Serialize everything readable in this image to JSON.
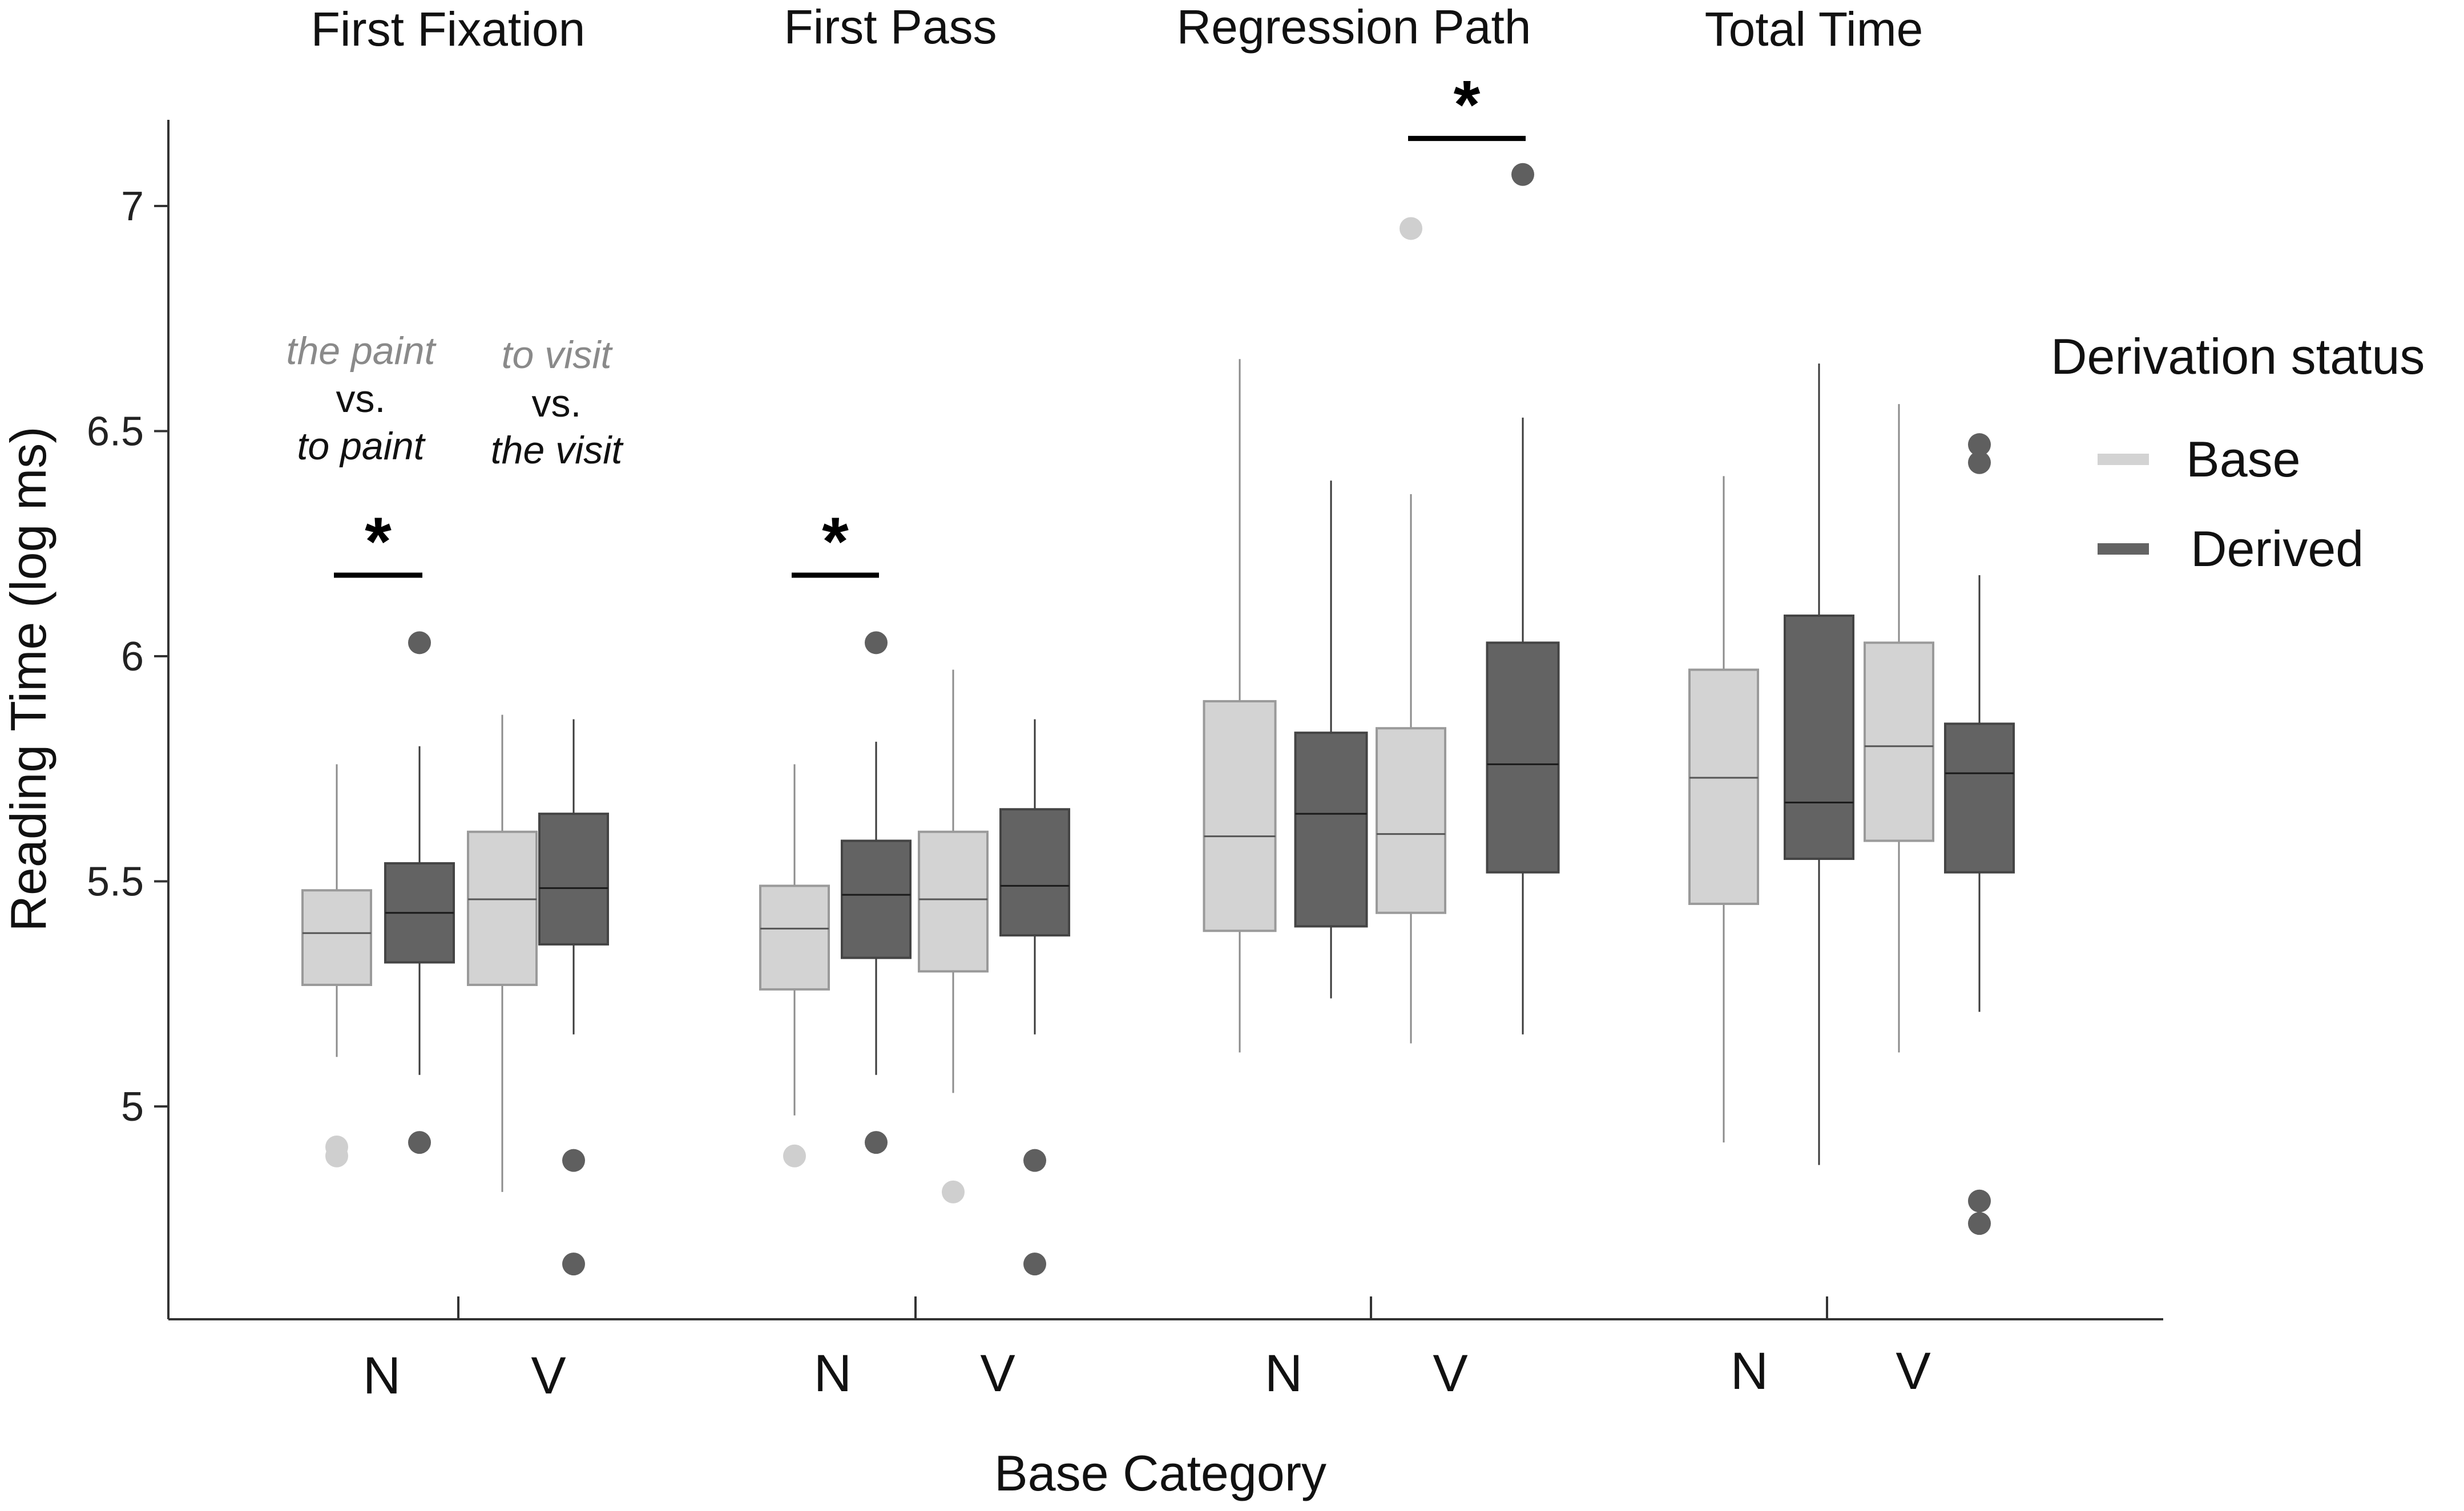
{
  "chart_data": {
    "type": "boxplot",
    "panels": [
      "First Fixation",
      "First Pass",
      "Regression Path",
      "Total Time"
    ],
    "categories": [
      "N",
      "V"
    ],
    "xlabel": "Base Category",
    "ylabel": "Reading Time (log ms)",
    "ylim": [
      4.55,
      7.2
    ],
    "yticks": [
      {
        "value": 5,
        "label": "5"
      },
      {
        "value": 5.5,
        "label": "5.5"
      },
      {
        "value": 6,
        "label": "6"
      },
      {
        "value": 6.5,
        "label": "6.5"
      },
      {
        "value": 7,
        "label": "7"
      }
    ],
    "legend": {
      "title": "Derivation status",
      "entries": [
        {
          "name": "Base",
          "color": "#d3d3d3"
        },
        {
          "name": "Derived",
          "color": "#636363"
        }
      ]
    },
    "colors": {
      "Base": "#d3d3d3",
      "Derived": "#636363",
      "Base_outlier": "#cfcfcf",
      "Derived_outlier": "#5f5f5f"
    },
    "boxes": [
      {
        "panel": 0,
        "cat": 0,
        "group": "Base",
        "whislo": 5.11,
        "q1": 5.27,
        "med": 5.385,
        "q3": 5.48,
        "whishi": 5.76,
        "fliers": [
          4.89,
          4.91
        ]
      },
      {
        "panel": 0,
        "cat": 0,
        "group": "Derived",
        "whislo": 5.07,
        "q1": 5.32,
        "med": 5.43,
        "q3": 5.54,
        "whishi": 5.8,
        "fliers": [
          4.92,
          6.03
        ]
      },
      {
        "panel": 0,
        "cat": 1,
        "group": "Base",
        "whislo": 4.81,
        "q1": 5.27,
        "med": 5.46,
        "q3": 5.61,
        "whishi": 5.87,
        "fliers": []
      },
      {
        "panel": 0,
        "cat": 1,
        "group": "Derived",
        "whislo": 5.16,
        "q1": 5.36,
        "med": 5.485,
        "q3": 5.65,
        "whishi": 5.86,
        "fliers": [
          4.88,
          4.65
        ]
      },
      {
        "panel": 1,
        "cat": 0,
        "group": "Base",
        "whislo": 4.98,
        "q1": 5.26,
        "med": 5.395,
        "q3": 5.49,
        "whishi": 5.76,
        "fliers": [
          4.89
        ]
      },
      {
        "panel": 1,
        "cat": 0,
        "group": "Derived",
        "whislo": 5.07,
        "q1": 5.33,
        "med": 5.47,
        "q3": 5.59,
        "whishi": 5.81,
        "fliers": [
          4.92,
          6.03
        ]
      },
      {
        "panel": 1,
        "cat": 1,
        "group": "Base",
        "whislo": 5.03,
        "q1": 5.3,
        "med": 5.46,
        "q3": 5.61,
        "whishi": 5.97,
        "fliers": [
          4.81
        ]
      },
      {
        "panel": 1,
        "cat": 1,
        "group": "Derived",
        "whislo": 5.16,
        "q1": 5.38,
        "med": 5.49,
        "q3": 5.66,
        "whishi": 5.86,
        "fliers": [
          4.88,
          4.65
        ]
      },
      {
        "panel": 2,
        "cat": 0,
        "group": "Base",
        "whislo": 5.12,
        "q1": 5.39,
        "med": 5.6,
        "q3": 5.9,
        "whishi": 6.66,
        "fliers": []
      },
      {
        "panel": 2,
        "cat": 0,
        "group": "Derived",
        "whislo": 5.24,
        "q1": 5.4,
        "med": 5.65,
        "q3": 5.83,
        "whishi": 6.39,
        "fliers": []
      },
      {
        "panel": 2,
        "cat": 1,
        "group": "Base",
        "whislo": 5.14,
        "q1": 5.43,
        "med": 5.605,
        "q3": 5.84,
        "whishi": 6.36,
        "fliers": [
          6.95
        ]
      },
      {
        "panel": 2,
        "cat": 1,
        "group": "Derived",
        "whislo": 5.16,
        "q1": 5.52,
        "med": 5.76,
        "q3": 6.03,
        "whishi": 6.53,
        "fliers": [
          7.07
        ]
      },
      {
        "panel": 3,
        "cat": 0,
        "group": "Base",
        "whislo": 4.92,
        "q1": 5.45,
        "med": 5.73,
        "q3": 5.97,
        "whishi": 6.4,
        "fliers": []
      },
      {
        "panel": 3,
        "cat": 0,
        "group": "Derived",
        "whislo": 4.87,
        "q1": 5.55,
        "med": 5.675,
        "q3": 6.09,
        "whishi": 6.65,
        "fliers": []
      },
      {
        "panel": 3,
        "cat": 1,
        "group": "Base",
        "whislo": 5.12,
        "q1": 5.59,
        "med": 5.8,
        "q3": 6.03,
        "whishi": 6.56,
        "fliers": []
      },
      {
        "panel": 3,
        "cat": 1,
        "group": "Derived",
        "whislo": 5.21,
        "q1": 5.52,
        "med": 5.74,
        "q3": 5.85,
        "whishi": 6.18,
        "fliers": [
          6.47,
          6.43,
          4.79,
          4.74
        ]
      }
    ],
    "significance": [
      {
        "panel": 0,
        "cat": 0,
        "label": "*",
        "value": 6.18
      },
      {
        "panel": 1,
        "cat": 0,
        "label": "*",
        "value": 6.18
      },
      {
        "panel": 2,
        "cat": 1,
        "label": "*",
        "value": 7.15
      }
    ],
    "annotations": {
      "noun": {
        "line1": "the paint",
        "line2": "vs.",
        "line3": "to paint"
      },
      "verb": {
        "line1": "to visit",
        "line2": "vs.",
        "line3": "the visit"
      }
    }
  }
}
